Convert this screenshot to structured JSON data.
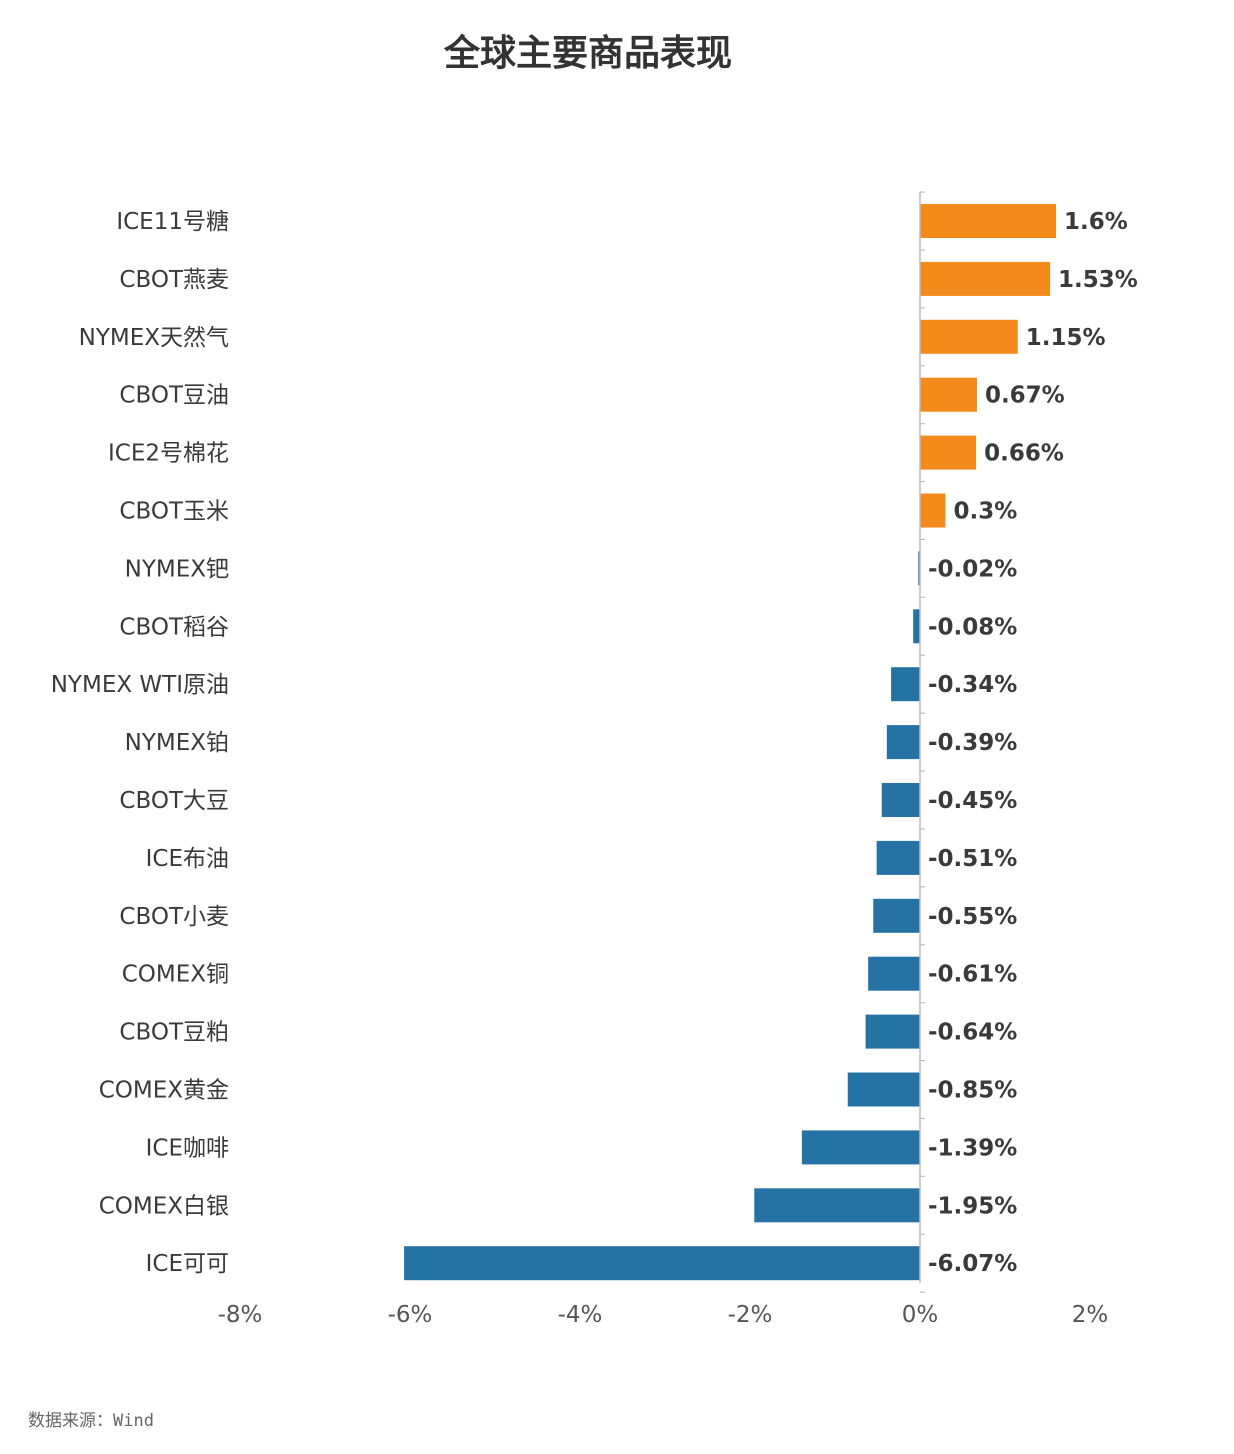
{
  "title": "全球主要商品表现",
  "source": "数据来源：Wind",
  "chart_data": {
    "type": "bar",
    "orientation": "horizontal",
    "title": "全球主要商品表现",
    "xlabel": "",
    "ylabel": "",
    "xlim": [
      -8,
      2
    ],
    "tick_values": [
      -8,
      -6,
      -4,
      -2,
      0,
      2
    ],
    "tick_labels": [
      "-8%",
      "-6%",
      "-4%",
      "-2%",
      "0%",
      "2%"
    ],
    "grid": false,
    "legend": "none",
    "colors": {
      "positive": "#f28a1c",
      "negative": "#2573a5"
    },
    "categories": [
      "ICE11号糖",
      "CBOT燕麦",
      "NYMEX天然气",
      "CBOT豆油",
      "ICE2号棉花",
      "CBOT玉米",
      "NYMEX钯",
      "CBOT稻谷",
      "NYMEX WTI原油",
      "NYMEX铂",
      "CBOT大豆",
      "ICE布油",
      "CBOT小麦",
      "COMEX铜",
      "CBOT豆粕",
      "COMEX黄金",
      "ICE咖啡",
      "COMEX白银",
      "ICE可可"
    ],
    "values": [
      1.6,
      1.53,
      1.15,
      0.67,
      0.66,
      0.3,
      -0.02,
      -0.08,
      -0.34,
      -0.39,
      -0.45,
      -0.51,
      -0.55,
      -0.61,
      -0.64,
      -0.85,
      -1.39,
      -1.95,
      -6.07
    ],
    "value_labels": [
      "1.6%",
      "1.53%",
      "1.15%",
      "0.67%",
      "0.66%",
      "0.3%",
      "-0.02%",
      "-0.08%",
      "-0.34%",
      "-0.39%",
      "-0.45%",
      "-0.51%",
      "-0.55%",
      "-0.61%",
      "-0.64%",
      "-0.85%",
      "-1.39%",
      "-1.95%",
      "-6.07%"
    ]
  }
}
